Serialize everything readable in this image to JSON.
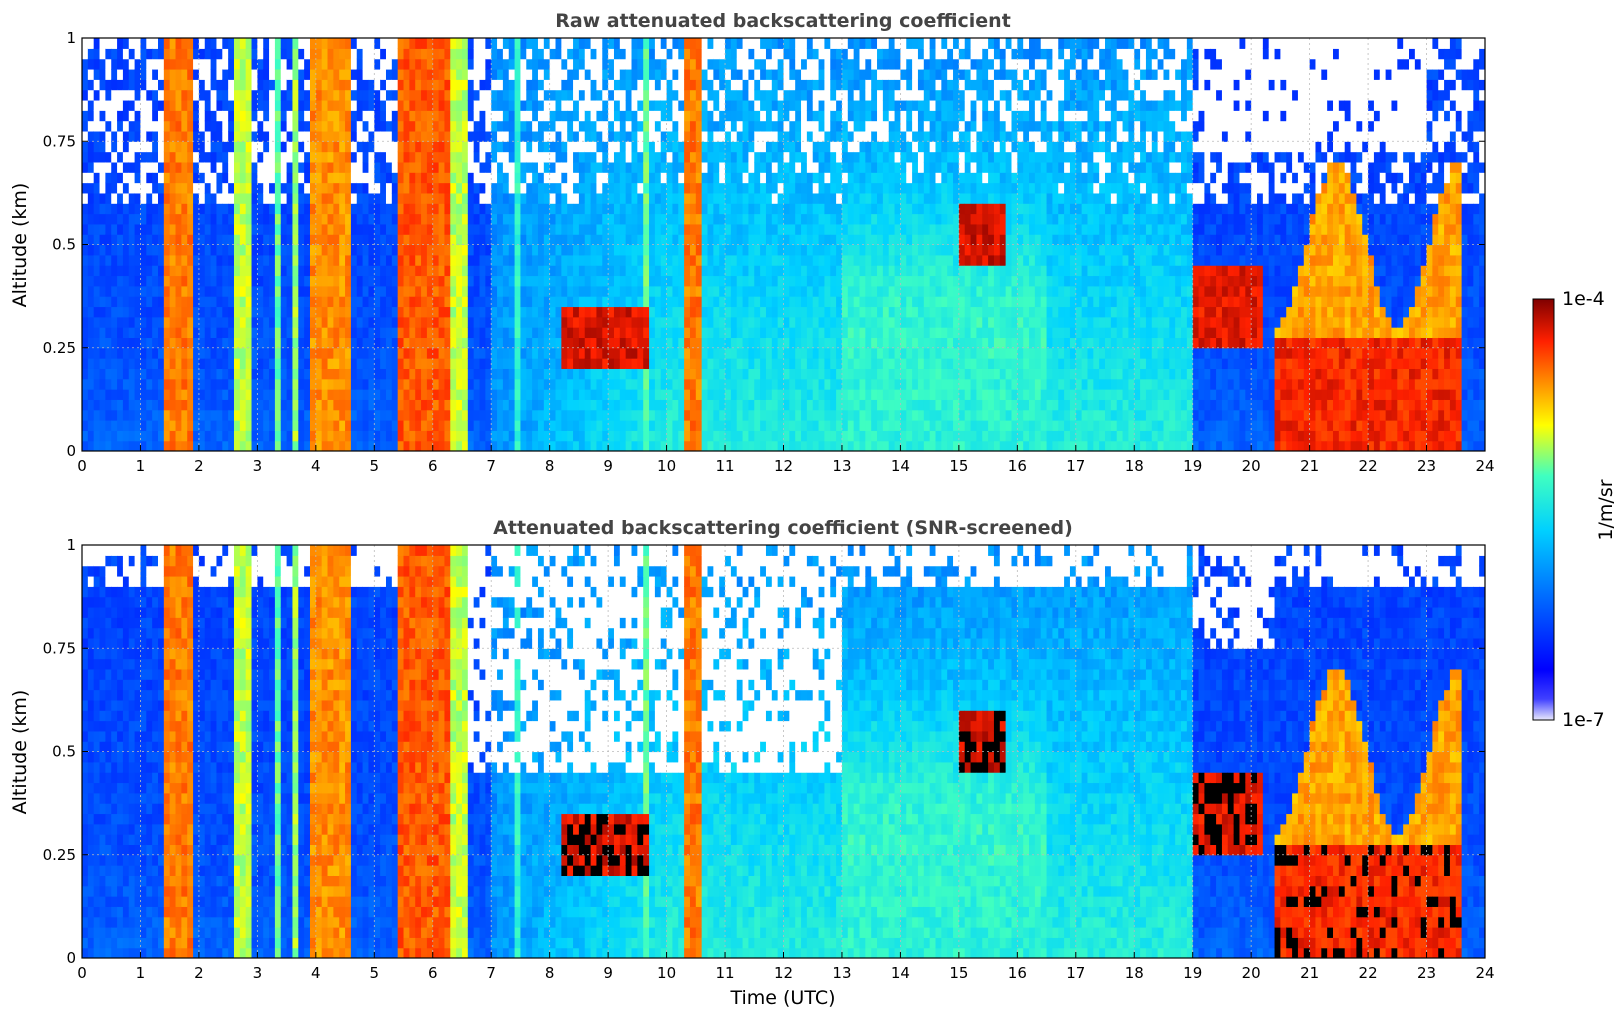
{
  "chart_data": [
    {
      "type": "heatmap",
      "title": "Raw attenuated backscattering coefficient",
      "xlabel": "",
      "ylabel": "Altitude (km)",
      "xlim": [
        0,
        24
      ],
      "ylim": [
        0,
        1
      ],
      "x_ticks": [
        "0",
        "1",
        "2",
        "3",
        "4",
        "5",
        "6",
        "7",
        "8",
        "9",
        "10",
        "11",
        "12",
        "13",
        "14",
        "15",
        "16",
        "17",
        "18",
        "19",
        "20",
        "21",
        "22",
        "23",
        "24"
      ],
      "y_ticks": [
        "0",
        "0.25",
        "0.5",
        "0.75",
        "1"
      ],
      "grid": true,
      "screened": false
    },
    {
      "type": "heatmap",
      "title": "Attenuated backscattering coefficient (SNR-screened)",
      "xlabel": "Time (UTC)",
      "ylabel": "Altitude (km)",
      "xlim": [
        0,
        24
      ],
      "ylim": [
        0,
        1
      ],
      "x_ticks": [
        "0",
        "1",
        "2",
        "3",
        "4",
        "5",
        "6",
        "7",
        "8",
        "9",
        "10",
        "11",
        "12",
        "13",
        "14",
        "15",
        "16",
        "17",
        "18",
        "19",
        "20",
        "21",
        "22",
        "23",
        "24"
      ],
      "y_ticks": [
        "0",
        "0.25",
        "0.5",
        "0.75",
        "1"
      ],
      "grid": true,
      "screened": true
    }
  ],
  "colorbar": {
    "label": "1/m/sr",
    "max_label": "1e-4",
    "min_label": "1e-7",
    "colormap": "jet",
    "colors": [
      "#e8e8fc",
      "#0000ff",
      "#0070ff",
      "#00c8ff",
      "#40ffc0",
      "#ffff00",
      "#ff9000",
      "#ff2000",
      "#800000"
    ]
  }
}
